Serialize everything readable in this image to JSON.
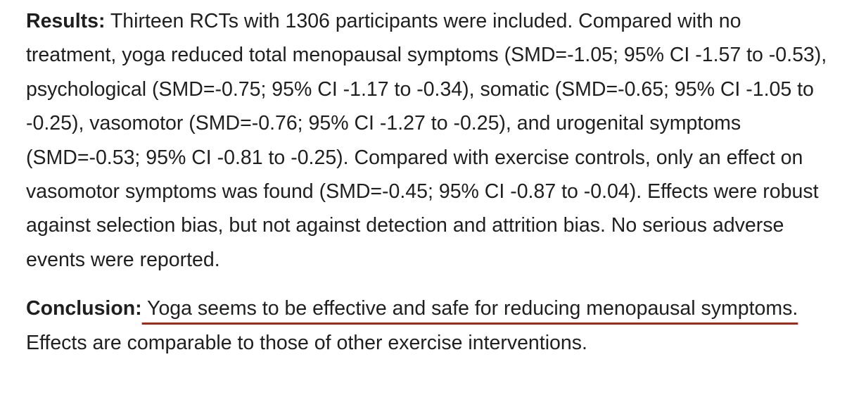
{
  "results": {
    "label": "Results:",
    "text": " Thirteen RCTs with 1306 participants were included. Compared with no treatment, yoga reduced total menopausal symptoms (SMD=-1.05; 95% CI -1.57 to -0.53), psychological (SMD=-0.75; 95% CI -1.17 to -0.34), somatic (SMD=-0.65; 95% CI -1.05 to -0.25), vasomotor (SMD=-0.76; 95% CI -1.27 to -0.25), and urogenital symptoms (SMD=-0.53; 95% CI -0.81 to -0.25). Compared with exercise controls, only an effect on vasomotor symptoms was found (SMD=-0.45; 95% CI -0.87 to -0.04). Effects were robust against selection bias, but not against detection and attrition bias. No serious adverse events were reported."
  },
  "conclusion": {
    "label": "Conclusion:",
    "highlight": " Yoga seems to be effective and safe for reducing menopausal symptoms.",
    "text": " Effects are comparable to those of other exercise interventions."
  },
  "colors": {
    "text": "#1f1f1f",
    "underline": "#a52a16",
    "background": "#ffffff"
  }
}
